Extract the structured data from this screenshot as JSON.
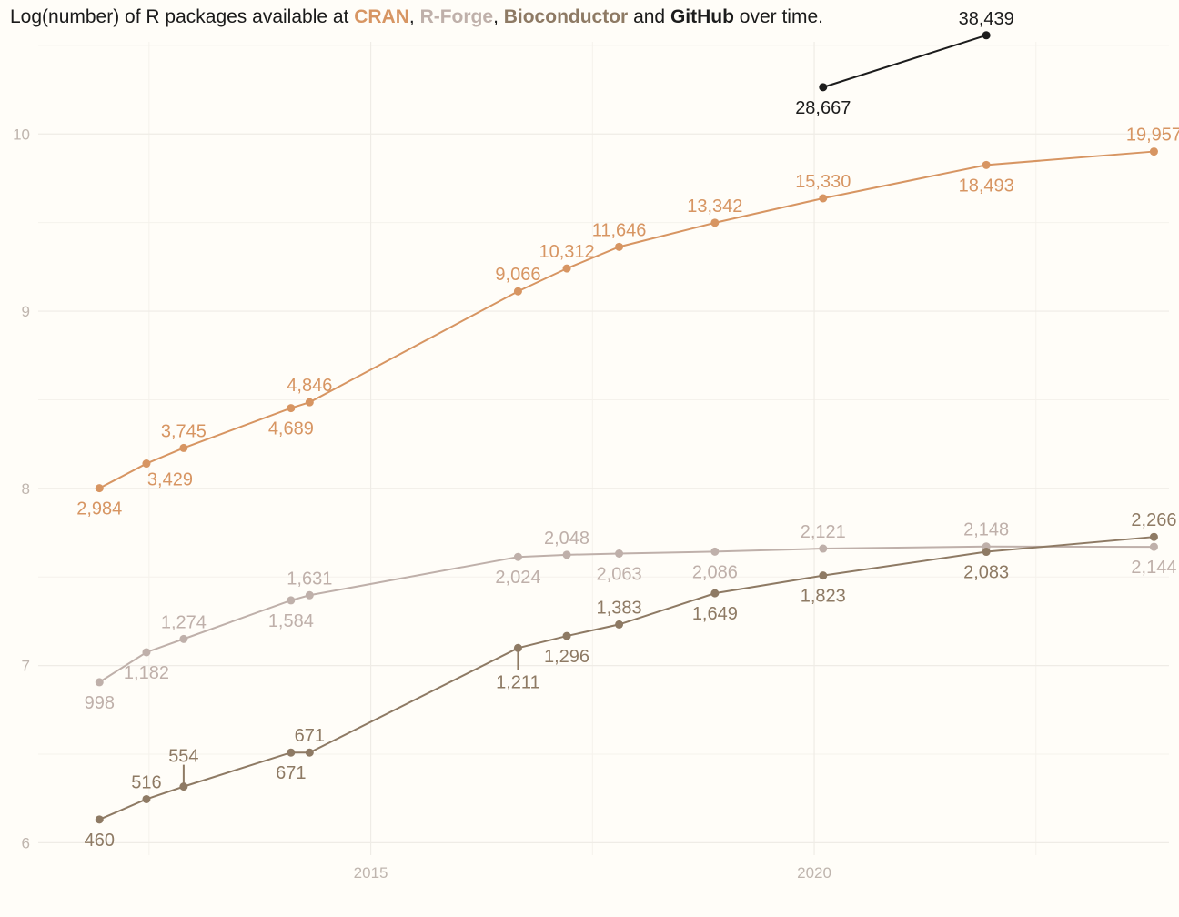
{
  "title": {
    "prefix": "Log(number) of R packages available at ",
    "cran": "CRAN",
    "sep1": ", ",
    "rforge": "R-Forge",
    "sep2": ", ",
    "bioc": "Bioconductor",
    "sep3": " and ",
    "github": "GitHub",
    "suffix": " over time."
  },
  "chart_data": {
    "type": "line",
    "title": "Log(number) of R packages available at CRAN, R-Forge, Bioconductor and GitHub over time.",
    "xlabel": "",
    "ylabel": "",
    "xlim": [
      2011.25,
      2024.0
    ],
    "ylim": [
      5.93,
      10.52
    ],
    "x_ticks": [
      2015,
      2020
    ],
    "y_ticks": [
      6,
      7,
      8,
      9,
      10
    ],
    "grid": true,
    "legend": "none (colored words in title)",
    "series": [
      {
        "name": "CRAN",
        "color": "#d79562",
        "points": [
          {
            "x": 2011.94,
            "y": 8.001,
            "label": "2,984",
            "pos": "below"
          },
          {
            "x": 2012.47,
            "y": 8.14,
            "label": "3,429",
            "pos": "below-right"
          },
          {
            "x": 2012.89,
            "y": 8.228,
            "label": "3,745",
            "pos": "above"
          },
          {
            "x": 2014.1,
            "y": 8.453,
            "label": "4,689",
            "pos": "below"
          },
          {
            "x": 2014.31,
            "y": 8.486,
            "label": "4,846",
            "pos": "above"
          },
          {
            "x": 2016.66,
            "y": 9.112,
            "label": "9,066",
            "pos": "above"
          },
          {
            "x": 2017.21,
            "y": 9.241,
            "label": "10,312",
            "pos": "above"
          },
          {
            "x": 2017.8,
            "y": 9.363,
            "label": "11,646",
            "pos": "above"
          },
          {
            "x": 2018.88,
            "y": 9.499,
            "label": "13,342",
            "pos": "above"
          },
          {
            "x": 2020.1,
            "y": 9.637,
            "label": "15,330",
            "pos": "above"
          },
          {
            "x": 2021.94,
            "y": 9.825,
            "label": "18,493",
            "pos": "below"
          },
          {
            "x": 2023.83,
            "y": 9.901,
            "label": "19,957",
            "pos": "above"
          }
        ]
      },
      {
        "name": "R-Forge",
        "color": "#bfb0aa",
        "points": [
          {
            "x": 2011.94,
            "y": 6.906,
            "label": "998",
            "pos": "below"
          },
          {
            "x": 2012.47,
            "y": 7.075,
            "label": "1,182",
            "pos": "below"
          },
          {
            "x": 2012.89,
            "y": 7.15,
            "label": "1,274",
            "pos": "above"
          },
          {
            "x": 2014.1,
            "y": 7.368,
            "label": "1,584",
            "pos": "below"
          },
          {
            "x": 2014.31,
            "y": 7.397,
            "label": "1,631",
            "pos": "above"
          },
          {
            "x": 2016.66,
            "y": 7.613,
            "label": "2,024",
            "pos": "below"
          },
          {
            "x": 2017.21,
            "y": 7.625,
            "label": "2,048",
            "pos": "above"
          },
          {
            "x": 2017.8,
            "y": 7.632,
            "label": "2,063",
            "pos": "below"
          },
          {
            "x": 2018.88,
            "y": 7.643,
            "label": "2,086",
            "pos": "below"
          },
          {
            "x": 2020.1,
            "y": 7.66,
            "label": "2,121",
            "pos": "above"
          },
          {
            "x": 2021.94,
            "y": 7.672,
            "label": "2,148",
            "pos": "above"
          },
          {
            "x": 2023.83,
            "y": 7.67,
            "label": "2,144",
            "pos": "below"
          }
        ]
      },
      {
        "name": "Bioconductor",
        "color": "#8e7a64",
        "points": [
          {
            "x": 2011.94,
            "y": 6.131,
            "label": "460",
            "pos": "below"
          },
          {
            "x": 2012.47,
            "y": 6.246,
            "label": "516",
            "pos": "above"
          },
          {
            "x": 2012.89,
            "y": 6.317,
            "label": "554",
            "pos": "above-leader"
          },
          {
            "x": 2014.1,
            "y": 6.509,
            "label": "671",
            "pos": "below"
          },
          {
            "x": 2014.31,
            "y": 6.509,
            "label": "671",
            "pos": "above"
          },
          {
            "x": 2016.66,
            "y": 7.099,
            "label": "1,211",
            "pos": "below-leader"
          },
          {
            "x": 2017.21,
            "y": 7.167,
            "label": "1,296",
            "pos": "below"
          },
          {
            "x": 2017.8,
            "y": 7.232,
            "label": "1,383",
            "pos": "above"
          },
          {
            "x": 2018.88,
            "y": 7.408,
            "label": "1,649",
            "pos": "below"
          },
          {
            "x": 2020.1,
            "y": 7.508,
            "label": "1,823",
            "pos": "below"
          },
          {
            "x": 2021.94,
            "y": 7.642,
            "label": "2,083",
            "pos": "below"
          },
          {
            "x": 2023.83,
            "y": 7.726,
            "label": "2,266",
            "pos": "above"
          }
        ]
      },
      {
        "name": "GitHub",
        "color": "#1c1c1c",
        "points": [
          {
            "x": 2020.1,
            "y": 10.264,
            "label": "28,667",
            "pos": "below"
          },
          {
            "x": 2021.94,
            "y": 10.557,
            "label": "38,439",
            "pos": "above"
          }
        ]
      }
    ]
  }
}
